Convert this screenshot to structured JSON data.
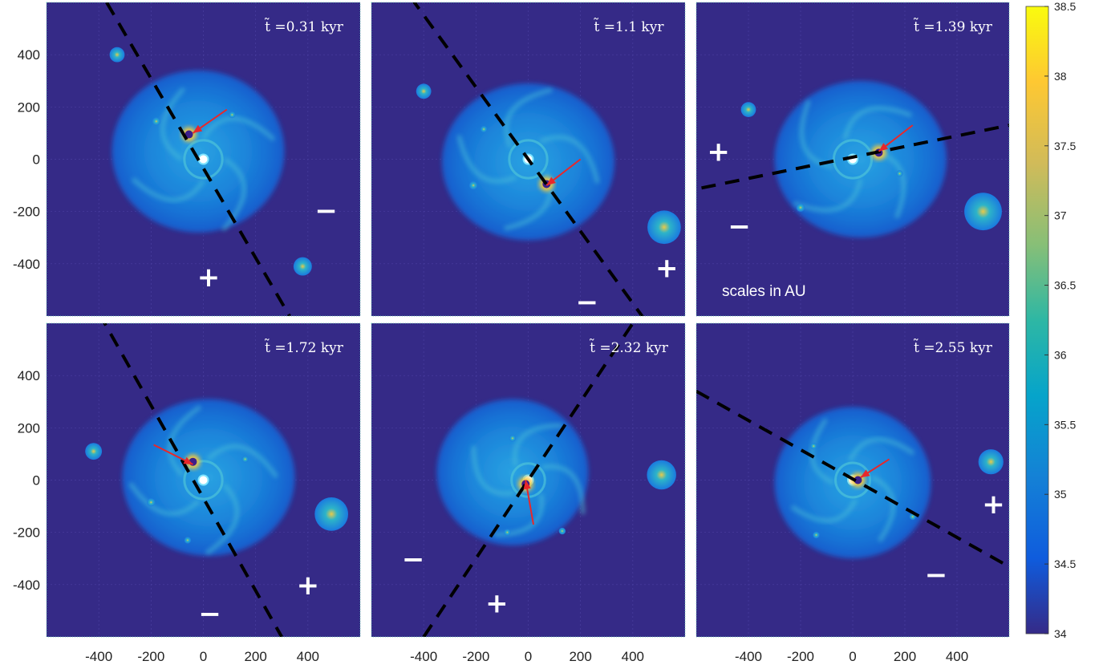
{
  "figure": {
    "axis_ticks": [
      -400,
      -200,
      0,
      200,
      400
    ],
    "axis_ticks_x_text": [
      "-400",
      "-200",
      "0",
      "200",
      "400"
    ],
    "axis_ticks_y_text": [
      "400",
      "200",
      "0",
      "-200",
      "-400"
    ],
    "axis_range": [
      -600,
      600
    ],
    "annotation": "scales in AU",
    "colorbar": {
      "range": [
        34,
        38.5
      ],
      "ticks": [
        "34",
        "34.5",
        "35",
        "35.5",
        "36",
        "36.5",
        "37",
        "37.5",
        "38",
        "38.5"
      ],
      "colormap": "parula"
    },
    "panels": [
      {
        "title": "t̃ =0.31 kyr",
        "signs": [
          "−",
          "+"
        ]
      },
      {
        "title": "t̃ =1.1 kyr",
        "signs": [
          "+",
          "−"
        ]
      },
      {
        "title": "t̃ =1.39 kyr",
        "signs": [
          "+",
          "−"
        ]
      },
      {
        "title": "t̃ =1.72 kyr",
        "signs": [
          "+",
          "−"
        ]
      },
      {
        "title": "t̃ =2.32 kyr",
        "signs": [
          "−",
          "+"
        ]
      },
      {
        "title": "t̃ =2.55 kyr",
        "signs": [
          "+",
          "−"
        ]
      }
    ]
  },
  "colors": {
    "background": "#352a87",
    "disk": "#1f8de0",
    "spiral": "#4dc3d8",
    "hot": "#f6c83c",
    "arrow": "#e8282a",
    "dashed_line": "#000000",
    "star": "#ffffff"
  }
}
